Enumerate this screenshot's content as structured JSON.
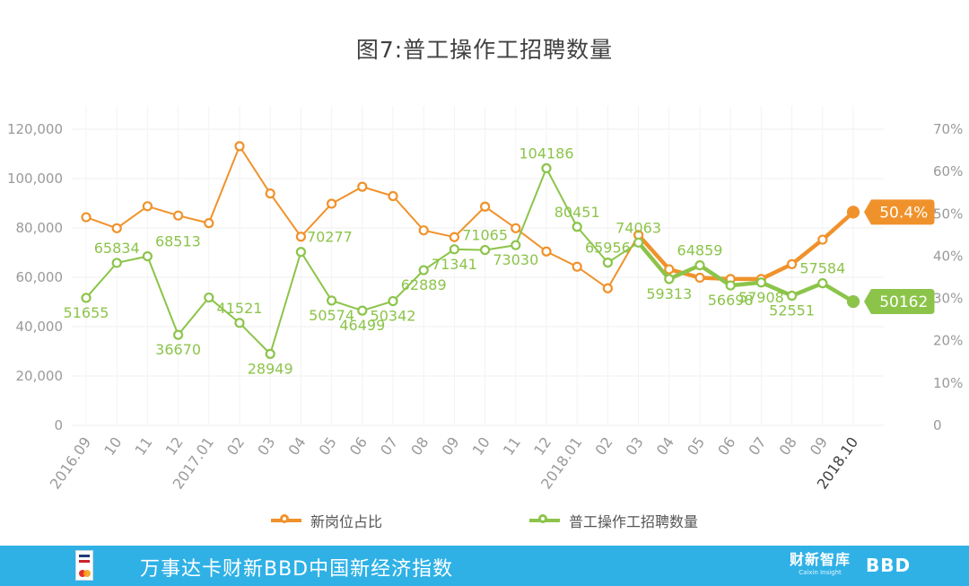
{
  "chart_data": {
    "type": "line",
    "title": "图7:普工操作工招聘数量",
    "categories": [
      "2016.09",
      "10",
      "11",
      "12",
      "2017.01",
      "02",
      "03",
      "04",
      "05",
      "06",
      "07",
      "08",
      "09",
      "10",
      "11",
      "12",
      "2018.01",
      "02",
      "03",
      "04",
      "05",
      "06",
      "07",
      "08",
      "09",
      "2018.10"
    ],
    "y_left": {
      "min": 0,
      "max": 120000,
      "ticks": [
        "0",
        "20,000",
        "40,000",
        "60,000",
        "80,000",
        "100,000",
        "120,000"
      ]
    },
    "y_right": {
      "min": 0,
      "max": 70,
      "ticks": [
        "0",
        "10%",
        "20%",
        "30%",
        "40%",
        "50%",
        "60%",
        "70%"
      ]
    },
    "grid": true,
    "legend_position": "bottom",
    "series": [
      {
        "name": "新岗位占比",
        "axis": "right",
        "color": "#f0922b",
        "values": [
          49.2,
          46.6,
          51.8,
          49.6,
          47.8,
          66.0,
          54.8,
          44.6,
          52.4,
          56.4,
          54.2,
          46.1,
          44.5,
          51.7,
          46.6,
          41.1,
          37.5,
          32.4,
          45.0,
          36.9,
          34.9,
          34.6,
          34.6,
          38.1,
          43.9,
          50.4
        ],
        "end_label": "50.4%"
      },
      {
        "name": "普工操作工招聘数量",
        "axis": "left",
        "color": "#8cc44a",
        "values": [
          51655,
          65834,
          68513,
          36670,
          51800,
          41521,
          28949,
          70277,
          50574,
          46499,
          50342,
          62889,
          71341,
          71065,
          73030,
          104186,
          80451,
          65956,
          74063,
          59313,
          64859,
          56698,
          57908,
          52551,
          57584,
          50162
        ],
        "data_labels": [
          "51655",
          "65834",
          "68513",
          "36670",
          "",
          "41521",
          "28949",
          "70277",
          "50574",
          "46499",
          "50342",
          "62889",
          "71341",
          "71065",
          "73030",
          "104186",
          "80451",
          "65956",
          "74063",
          "59313",
          "64859",
          "56698",
          "57908",
          "52551",
          "57584",
          "50162"
        ],
        "end_label": "50162"
      }
    ]
  },
  "footer": {
    "text": "万事达卡财新BBD中国新经济指数",
    "brand1": "财新智库",
    "brand1_sub": "Caixin Insight",
    "brand2": "BBD"
  },
  "colors": {
    "orange": "#f0922b",
    "green": "#8cc44a",
    "footer_bg": "#2fb1e6"
  }
}
